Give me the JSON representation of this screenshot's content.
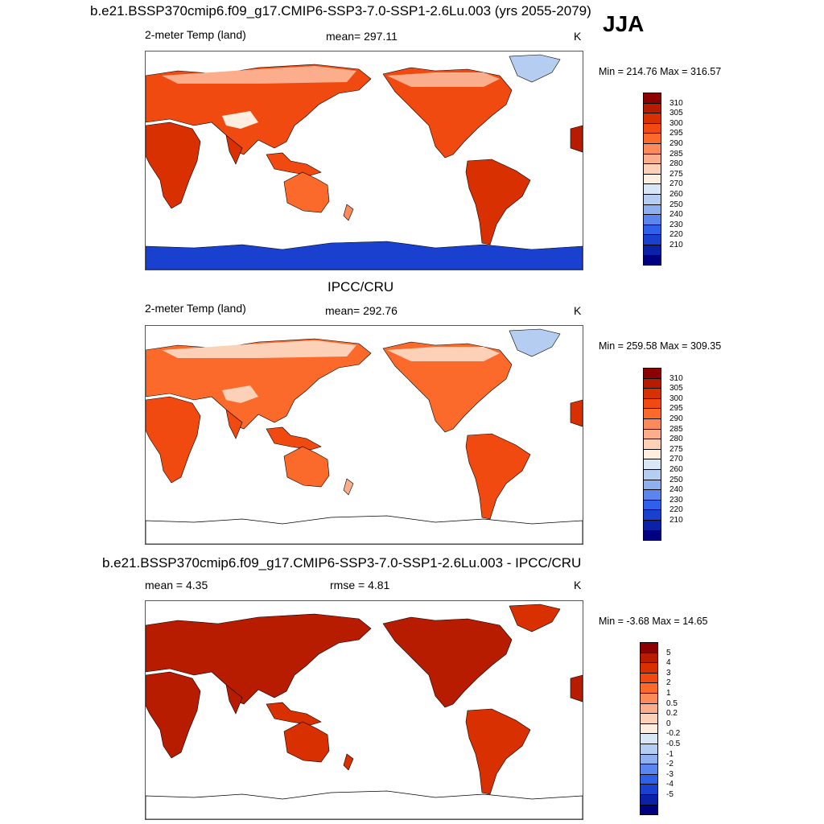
{
  "season": "JJA",
  "panels": [
    {
      "title": "b.e21.BSSP370cmip6.f09_g17.CMIP6-SSP3-7.0-SSP1-2.6Lu.003 (yrs 2055-2079)",
      "left_label": "2-meter Temp (land)",
      "center_label": "mean= 297.11",
      "right_label": "K",
      "minmax": "Min = 214.76 Max = 316.57",
      "kind": "model"
    },
    {
      "title": "IPCC/CRU",
      "left_label": "2-meter Temp (land)",
      "center_label": "mean= 292.76",
      "right_label": "K",
      "minmax": "Min = 259.58 Max = 309.35",
      "kind": "obs"
    },
    {
      "title": "b.e21.BSSP370cmip6.f09_g17.CMIP6-SSP3-7.0-SSP1-2.6Lu.003 - IPCC/CRU",
      "left_label": "mean =   4.35",
      "center_label": "rmse =   4.81",
      "right_label": "K",
      "minmax": "Min =  -3.68 Max =  14.65",
      "kind": "diff"
    }
  ],
  "colorbar_abs": {
    "labels": [
      "310",
      "305",
      "300",
      "295",
      "290",
      "285",
      "280",
      "275",
      "270",
      "260",
      "250",
      "240",
      "230",
      "220",
      "210"
    ],
    "colors": [
      "#8b0000",
      "#b71c00",
      "#d83000",
      "#f04a10",
      "#fb6a2a",
      "#fc8a5a",
      "#fcae8c",
      "#fdd0b8",
      "#fdeee0",
      "#d8e6f6",
      "#b4cdf0",
      "#8fb0ee",
      "#5a86ee",
      "#2f60ea",
      "#1a40d0",
      "#0b22a8",
      "#000080"
    ]
  },
  "colorbar_diff": {
    "labels": [
      "5",
      "4",
      "3",
      "2",
      "1",
      "0.5",
      "0.2",
      "0",
      "-0.2",
      "-0.5",
      "-1",
      "-2",
      "-3",
      "-4",
      "-5"
    ],
    "colors": [
      "#8b0000",
      "#b71c00",
      "#d83000",
      "#f04a10",
      "#fb6a2a",
      "#fc8a5a",
      "#fcae8c",
      "#fdd0b8",
      "#fdeee0",
      "#d8e6f6",
      "#b4cdf0",
      "#8fb0ee",
      "#5a86ee",
      "#2f60ea",
      "#1a40d0",
      "#0b22a8",
      "#000080"
    ]
  }
}
